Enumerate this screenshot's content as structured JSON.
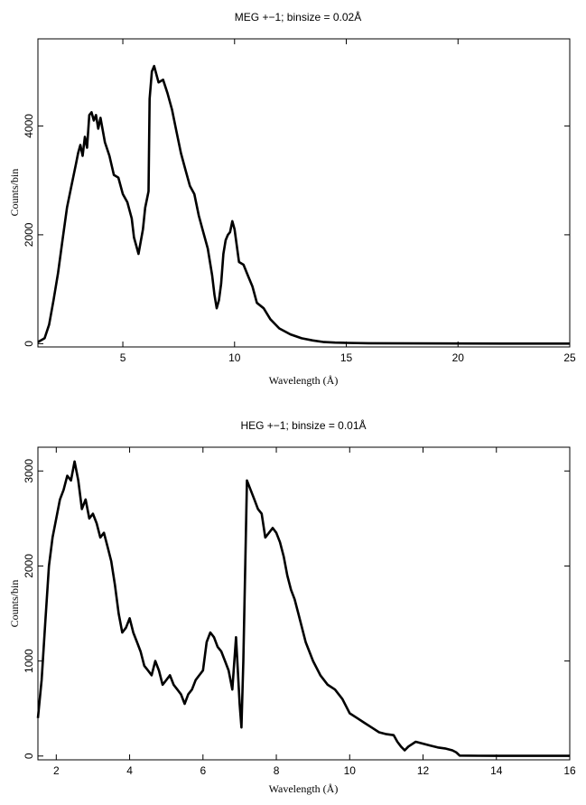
{
  "chart_data": [
    {
      "type": "line",
      "title": "MEG +−1; binsize = 0.02Å",
      "xlabel": "Wavelength (Å)",
      "ylabel": "Counts/bin",
      "xlim": [
        1.2,
        25
      ],
      "ylim": [
        -60,
        5600
      ],
      "xticks": [
        5,
        10,
        15,
        20,
        25
      ],
      "yticks": [
        0,
        2000,
        4000
      ],
      "grid": false,
      "series": [
        {
          "x": [
            1.2,
            1.5,
            1.7,
            1.9,
            2.1,
            2.3,
            2.5,
            2.7,
            2.9,
            3.0,
            3.1,
            3.2,
            3.3,
            3.4,
            3.5,
            3.6,
            3.7,
            3.8,
            3.9,
            4.0,
            4.2,
            4.4,
            4.6,
            4.8,
            5.0,
            5.2,
            5.4,
            5.5,
            5.6,
            5.7,
            5.9,
            6.0,
            6.1,
            6.15,
            6.2,
            6.3,
            6.4,
            6.6,
            6.8,
            7.0,
            7.2,
            7.4,
            7.6,
            7.8,
            8.0,
            8.2,
            8.4,
            8.6,
            8.8,
            9.0,
            9.1,
            9.2,
            9.3,
            9.4,
            9.5,
            9.6,
            9.7,
            9.8,
            9.9,
            10.0,
            10.2,
            10.4,
            10.6,
            10.8,
            11.0,
            11.3,
            11.6,
            12.0,
            12.5,
            13.0,
            13.5,
            14.0,
            14.5,
            15.0,
            16.0,
            18.0,
            20.0,
            22.0,
            25.0
          ],
          "y": [
            30,
            100,
            350,
            800,
            1300,
            1900,
            2500,
            2900,
            3300,
            3500,
            3650,
            3450,
            3800,
            3600,
            4200,
            4250,
            4100,
            4200,
            3950,
            4150,
            3700,
            3450,
            3100,
            3050,
            2750,
            2600,
            2300,
            1950,
            1800,
            1650,
            2100,
            2500,
            2700,
            2800,
            4500,
            5000,
            5100,
            4800,
            4850,
            4600,
            4300,
            3900,
            3500,
            3200,
            2900,
            2750,
            2350,
            2050,
            1750,
            1250,
            900,
            650,
            800,
            1100,
            1650,
            1900,
            2000,
            2050,
            2250,
            2100,
            1500,
            1450,
            1250,
            1050,
            750,
            650,
            450,
            280,
            170,
            100,
            60,
            30,
            20,
            15,
            8,
            5,
            3,
            2,
            2
          ]
        }
      ]
    },
    {
      "type": "line",
      "title": "HEG +−1; binsize = 0.01Å",
      "xlabel": "Wavelength (Å)",
      "ylabel": "Counts/bin",
      "xlim": [
        1.5,
        16
      ],
      "ylim": [
        -40,
        3250
      ],
      "xticks": [
        2,
        4,
        6,
        8,
        10,
        12,
        14,
        16
      ],
      "yticks": [
        0,
        1000,
        2000,
        3000
      ],
      "grid": false,
      "series": [
        {
          "x": [
            1.5,
            1.6,
            1.7,
            1.8,
            1.9,
            2.0,
            2.1,
            2.2,
            2.3,
            2.4,
            2.5,
            2.6,
            2.7,
            2.8,
            2.9,
            3.0,
            3.1,
            3.2,
            3.3,
            3.4,
            3.5,
            3.6,
            3.7,
            3.8,
            3.9,
            4.0,
            4.1,
            4.2,
            4.3,
            4.4,
            4.5,
            4.6,
            4.7,
            4.8,
            4.9,
            5.0,
            5.1,
            5.2,
            5.3,
            5.4,
            5.5,
            5.6,
            5.7,
            5.8,
            5.9,
            6.0,
            6.1,
            6.2,
            6.3,
            6.4,
            6.5,
            6.6,
            6.7,
            6.8,
            6.9,
            7.0,
            7.05,
            7.1,
            7.2,
            7.3,
            7.4,
            7.5,
            7.6,
            7.7,
            7.8,
            7.9,
            8.0,
            8.1,
            8.2,
            8.3,
            8.4,
            8.5,
            8.6,
            8.8,
            9.0,
            9.2,
            9.4,
            9.6,
            9.8,
            10.0,
            10.2,
            10.4,
            10.6,
            10.8,
            11.0,
            11.2,
            11.3,
            11.4,
            11.5,
            11.6,
            11.8,
            12.0,
            12.2,
            12.4,
            12.6,
            12.8,
            12.9,
            13.0,
            13.5,
            14.0,
            15.0,
            16.0
          ],
          "y": [
            400,
            800,
            1400,
            2000,
            2300,
            2500,
            2700,
            2800,
            2950,
            2900,
            3100,
            2900,
            2600,
            2700,
            2500,
            2550,
            2450,
            2300,
            2350,
            2200,
            2050,
            1800,
            1500,
            1300,
            1350,
            1450,
            1300,
            1200,
            1100,
            950,
            900,
            850,
            1000,
            900,
            750,
            800,
            850,
            750,
            700,
            650,
            550,
            650,
            700,
            800,
            850,
            900,
            1200,
            1300,
            1250,
            1150,
            1100,
            1000,
            900,
            700,
            1250,
            550,
            300,
            1000,
            2900,
            2800,
            2700,
            2600,
            2550,
            2300,
            2350,
            2400,
            2350,
            2250,
            2100,
            1900,
            1750,
            1650,
            1500,
            1200,
            1000,
            850,
            750,
            700,
            600,
            450,
            400,
            350,
            300,
            250,
            230,
            220,
            150,
            100,
            60,
            100,
            150,
            130,
            110,
            90,
            80,
            60,
            40,
            5,
            3,
            2,
            2,
            2
          ]
        }
      ]
    }
  ]
}
